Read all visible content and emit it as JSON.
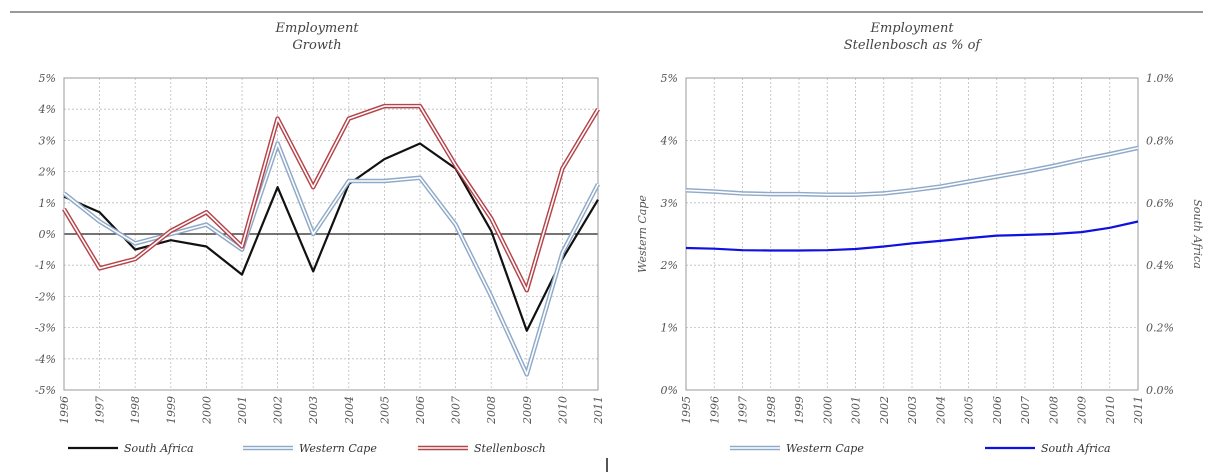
{
  "chart_data": [
    {
      "type": "line",
      "title_lines": [
        "Employment",
        "Growth"
      ],
      "xlabel": "",
      "ylabel": "",
      "x": [
        "1996",
        "1997",
        "1998",
        "1999",
        "2000",
        "2001",
        "2002",
        "2003",
        "2004",
        "2005",
        "2006",
        "2007",
        "2008",
        "2009",
        "2010",
        "2011"
      ],
      "y_ticks": [
        "5%",
        "4%",
        "3%",
        "2%",
        "1%",
        "0%",
        "-1%",
        "-2%",
        "-3%",
        "-4%",
        "-5%"
      ],
      "ylim": [
        -5,
        5
      ],
      "grid": true,
      "legend": "bottom",
      "series": [
        {
          "name": "South Africa",
          "color": "#111111",
          "style": "solid",
          "values": [
            1.2,
            0.7,
            -0.5,
            -0.2,
            -0.4,
            -1.3,
            1.5,
            -1.2,
            1.6,
            2.4,
            2.9,
            2.1,
            0.1,
            -3.1,
            -0.8,
            1.1
          ]
        },
        {
          "name": "Western Cape",
          "color": "#8fa9c9",
          "style": "double",
          "values": [
            1.3,
            0.4,
            -0.3,
            0.0,
            0.3,
            -0.5,
            2.9,
            0.0,
            1.7,
            1.7,
            1.8,
            0.3,
            -2.0,
            -4.5,
            -0.6,
            1.6
          ]
        },
        {
          "name": "Stellenbosch",
          "color": "#b5444a",
          "style": "double",
          "values": [
            0.8,
            -1.1,
            -0.8,
            0.1,
            0.7,
            -0.4,
            3.7,
            1.5,
            3.7,
            4.1,
            4.1,
            2.2,
            0.5,
            -1.8,
            2.1,
            4.0
          ]
        }
      ]
    },
    {
      "type": "line",
      "title_lines": [
        "Employment",
        "Stellenbosch as % of"
      ],
      "xlabel": "",
      "ylabel_left": "Western Cape",
      "ylabel_right": "South Africa",
      "x": [
        "1995",
        "1996",
        "1997",
        "1998",
        "1999",
        "2000",
        "2001",
        "2002",
        "2003",
        "2004",
        "2005",
        "2006",
        "2007",
        "2008",
        "2009",
        "2010",
        "2011"
      ],
      "y_ticks_left": [
        "5%",
        "4%",
        "3%",
        "2%",
        "1%",
        "0%"
      ],
      "y_ticks_right": [
        "1.0%",
        "0.8%",
        "0.6%",
        "0.4%",
        "0.2%",
        "0.0%"
      ],
      "ylim_left": [
        0,
        5
      ],
      "ylim_right": [
        0,
        1.0
      ],
      "grid": true,
      "legend": "bottom",
      "series": [
        {
          "name": "Western Cape",
          "axis": "left",
          "color": "#8fa9c9",
          "style": "double",
          "values": [
            3.2,
            3.18,
            3.15,
            3.14,
            3.14,
            3.13,
            3.13,
            3.15,
            3.2,
            3.26,
            3.34,
            3.42,
            3.5,
            3.59,
            3.69,
            3.78,
            3.88
          ]
        },
        {
          "name": "South Africa",
          "axis": "right",
          "color": "#1010e0",
          "style": "solid",
          "values": [
            0.455,
            0.453,
            0.448,
            0.447,
            0.447,
            0.448,
            0.452,
            0.46,
            0.47,
            0.478,
            0.487,
            0.495,
            0.497,
            0.5,
            0.506,
            0.52,
            0.54
          ]
        }
      ]
    }
  ]
}
